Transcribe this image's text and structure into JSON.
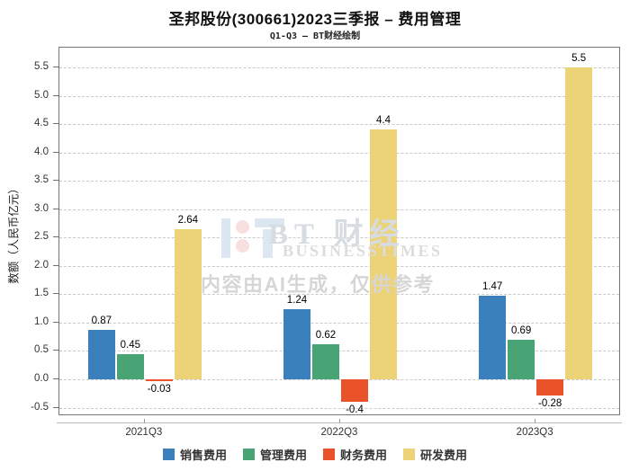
{
  "header": {
    "title": "圣邦股份(300661)2023三季报 – 费用管理",
    "subtitle": "Q1-Q3 – BT财经绘制"
  },
  "chart_data": {
    "type": "bar",
    "title": "圣邦股份(300661)2023三季报 – 费用管理",
    "subtitle": "Q1-Q3 – BT财经绘制",
    "categories": [
      "2021Q3",
      "2022Q3",
      "2023Q3"
    ],
    "series": [
      {
        "name": "销售费用",
        "color": "#3a80bc",
        "values": [
          0.87,
          1.24,
          1.47
        ]
      },
      {
        "name": "管理费用",
        "color": "#48a474",
        "values": [
          0.45,
          0.62,
          0.69
        ]
      },
      {
        "name": "财务费用",
        "color": "#ea5329",
        "values": [
          -0.03,
          -0.4,
          -0.28
        ]
      },
      {
        "name": "研发费用",
        "color": "#ecd377",
        "values": [
          2.64,
          4.4,
          5.5
        ]
      }
    ],
    "xlabel": "",
    "ylabel": "数额（人民币亿元）",
    "ylim": [
      -0.65,
      5.85
    ],
    "yticks": {
      "min": -0.5,
      "max": 5.5,
      "step": 0.5
    },
    "grid": true,
    "grid_style": "dashed",
    "legend_position": "bottom",
    "group_center_fractions": [
      0.152,
      0.5,
      0.848
    ]
  },
  "watermark": {
    "brand": "BT 财经",
    "brand_sub": "BUSINESSTIMES",
    "ai_note": "内容由AI生成，仅供参考"
  }
}
